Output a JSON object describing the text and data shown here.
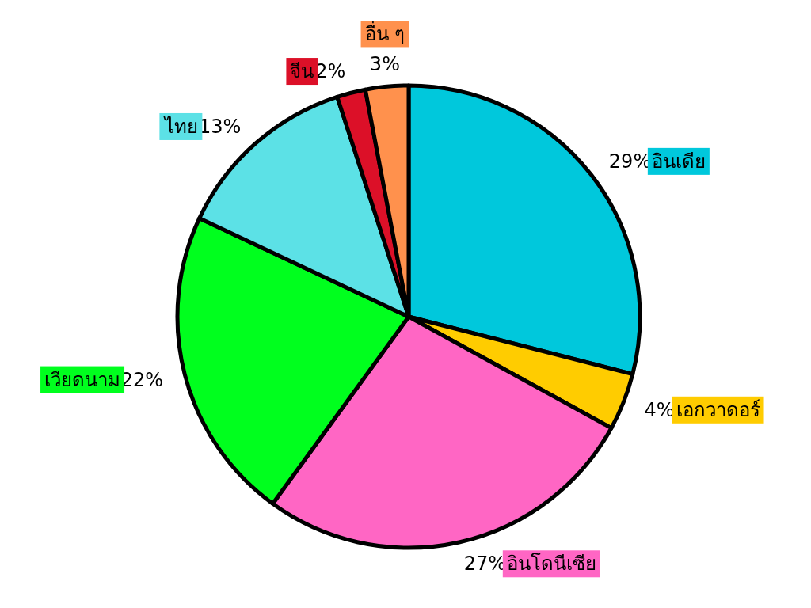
{
  "chart_data": {
    "type": "pie",
    "categories": [
      "อินเดีย",
      "เอกวาดอร์",
      "อินโดนีเซีย",
      "เวียดนาม",
      "ไทย",
      "จีน",
      "อื่น ๆ"
    ],
    "values": [
      29,
      4,
      27,
      22,
      13,
      2,
      3
    ],
    "value_labels": [
      "29%",
      "4%",
      "27%",
      "22%",
      "13%",
      "2%",
      "3%"
    ],
    "colors": [
      "#00c8dc",
      "#ffcc00",
      "#ff66c4",
      "#00ff1e",
      "#5ce1e6",
      "#dc1028",
      "#ff914d"
    ]
  }
}
